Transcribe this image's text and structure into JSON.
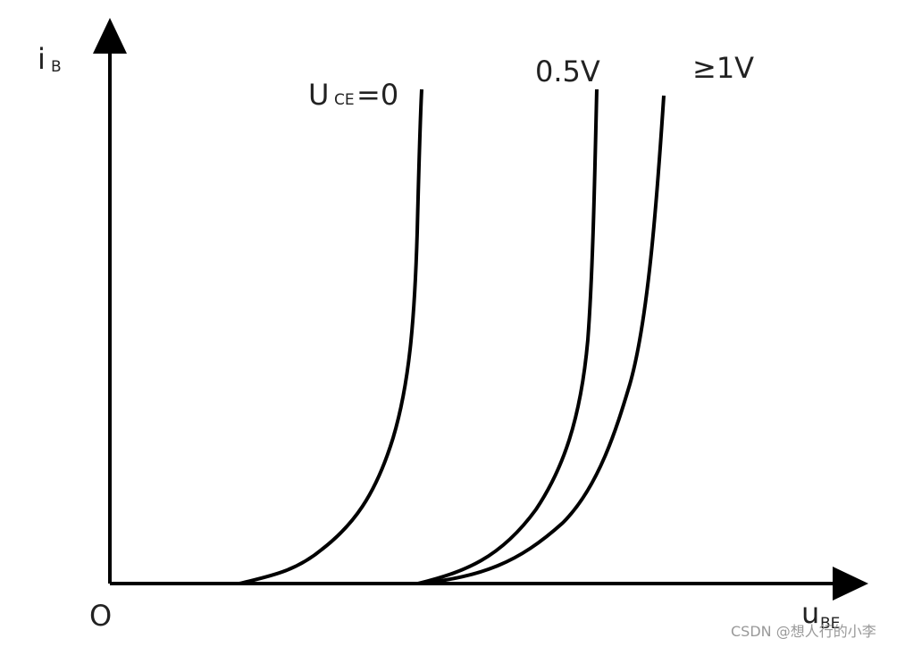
{
  "axes": {
    "y_label": {
      "main": "i",
      "sub": "B"
    },
    "x_label": {
      "main": "u",
      "sub": "BE"
    },
    "origin": "O"
  },
  "curves": [
    {
      "label": {
        "main": "U",
        "sub": "CE",
        "suffix": "=0"
      }
    },
    {
      "label": "0.5V"
    },
    {
      "label": "≥1V"
    }
  ],
  "watermark": "CSDN @想人行的小李"
}
